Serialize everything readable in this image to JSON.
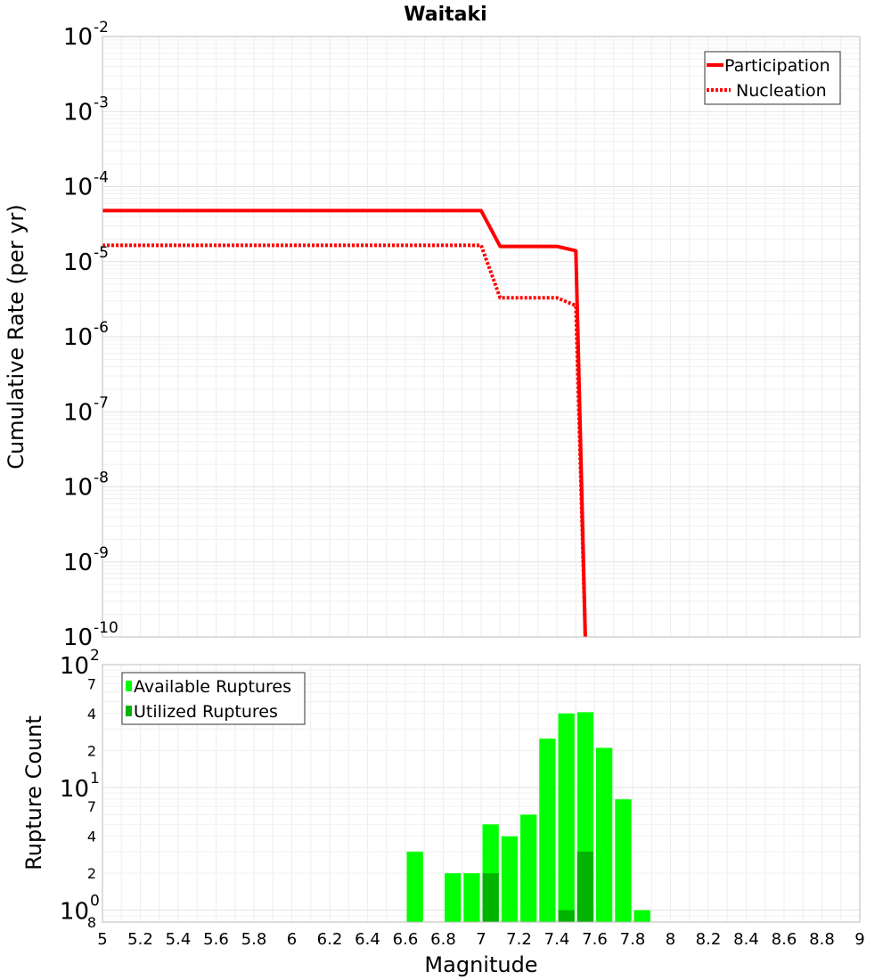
{
  "chart_data": [
    {
      "type": "line",
      "title": "Waitaki",
      "xlabel": "",
      "ylabel": "Cumulative Rate (per yr)",
      "yscale": "log",
      "ylim": [
        1e-10,
        0.01
      ],
      "xlim": [
        5,
        9
      ],
      "y_ticks": [
        {
          "base": "10",
          "exp": "-2"
        },
        {
          "base": "10",
          "exp": "-3"
        },
        {
          "base": "10",
          "exp": "-4"
        },
        {
          "base": "10",
          "exp": "-5"
        },
        {
          "base": "10",
          "exp": "-6"
        },
        {
          "base": "10",
          "exp": "-7"
        },
        {
          "base": "10",
          "exp": "-8"
        },
        {
          "base": "10",
          "exp": "-9"
        },
        {
          "base": "10",
          "exp": "-10"
        }
      ],
      "legend_position": "top-right",
      "series": [
        {
          "name": "Participation",
          "style": "solid",
          "color": "#ff0000",
          "x": [
            5.0,
            7.0,
            7.1,
            7.4,
            7.5,
            7.55
          ],
          "y": [
            4.8e-05,
            4.8e-05,
            1.6e-05,
            1.6e-05,
            1.4e-05,
            1e-10
          ]
        },
        {
          "name": "Nucleation",
          "style": "dotted",
          "color": "#ff0000",
          "x": [
            5.0,
            7.0,
            7.1,
            7.4,
            7.5,
            7.55
          ],
          "y": [
            1.65e-05,
            1.65e-05,
            3.3e-06,
            3.3e-06,
            2.6e-06,
            1e-10
          ]
        }
      ]
    },
    {
      "type": "bar",
      "title": "",
      "xlabel": "Magnitude",
      "ylabel": "Rupture Count",
      "yscale": "log",
      "ylim": [
        0.8,
        100
      ],
      "xlim": [
        5,
        9
      ],
      "x_ticks": [
        "5",
        "5.2",
        "5.4",
        "5.6",
        "5.8",
        "6",
        "6.2",
        "6.4",
        "6.6",
        "6.8",
        "7",
        "7.2",
        "7.4",
        "7.6",
        "7.8",
        "8",
        "8.2",
        "8.4",
        "8.6",
        "8.8",
        "9"
      ],
      "y_major_ticks": [
        {
          "base": "10",
          "exp": "2"
        },
        {
          "base": "10",
          "exp": "1"
        },
        {
          "base": "10",
          "exp": "0"
        }
      ],
      "y_minor_tick_labels": [
        "7",
        "4",
        "2",
        "7",
        "4",
        "2",
        "8"
      ],
      "legend_position": "top-left",
      "series": [
        {
          "name": "Available Ruptures",
          "color": "#00ff00",
          "x": [
            6.65,
            6.85,
            6.95,
            7.05,
            7.15,
            7.25,
            7.35,
            7.45,
            7.55,
            7.65,
            7.75,
            7.85
          ],
          "values": [
            3,
            2,
            2,
            5,
            4,
            6,
            25,
            40,
            41,
            21,
            8,
            1
          ]
        },
        {
          "name": "Utilized Ruptures",
          "color": "#00b400",
          "x": [
            7.05,
            7.45,
            7.55
          ],
          "values": [
            2,
            1,
            3
          ]
        }
      ]
    }
  ]
}
